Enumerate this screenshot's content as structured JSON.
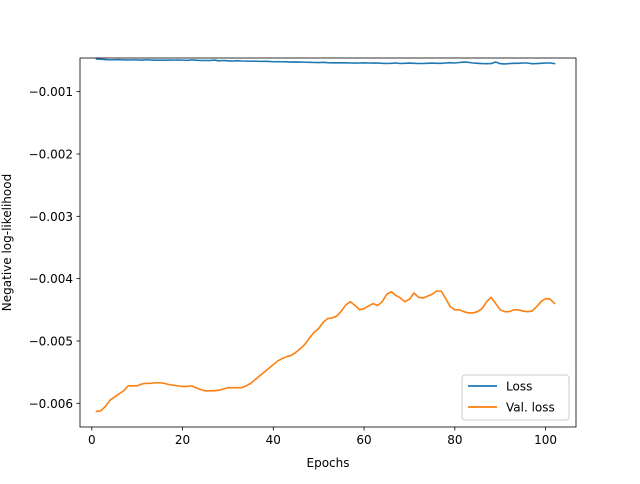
{
  "chart_data": {
    "type": "line",
    "title": "",
    "xlabel": "Epochs",
    "ylabel": "Negative log-likelihood",
    "xlim": [
      -2.6,
      106.7
    ],
    "ylim": [
      -0.00638,
      -0.00046
    ],
    "xticks": [
      0,
      20,
      40,
      60,
      80,
      100
    ],
    "xtick_labels": [
      "0",
      "20",
      "40",
      "60",
      "80",
      "100"
    ],
    "yticks": [
      -0.001,
      -0.002,
      -0.003,
      -0.004,
      -0.005,
      -0.006
    ],
    "ytick_labels": [
      "−0.001",
      "−0.002",
      "−0.003",
      "−0.004",
      "−0.005",
      "−0.006"
    ],
    "grid": false,
    "legend": "lower-right",
    "x": [
      1,
      2,
      3,
      4,
      5,
      6,
      7,
      8,
      9,
      10,
      11,
      12,
      13,
      14,
      15,
      16,
      17,
      18,
      19,
      20,
      21,
      22,
      23,
      24,
      25,
      26,
      27,
      28,
      29,
      30,
      31,
      32,
      33,
      34,
      35,
      36,
      37,
      38,
      39,
      40,
      41,
      42,
      43,
      44,
      45,
      46,
      47,
      48,
      49,
      50,
      51,
      52,
      53,
      54,
      55,
      56,
      57,
      58,
      59,
      60,
      61,
      62,
      63,
      64,
      65,
      66,
      67,
      68,
      69,
      70,
      71,
      72,
      73,
      74,
      75,
      76,
      77,
      78,
      79,
      80,
      81,
      82,
      83,
      84,
      85,
      86,
      87,
      88,
      89,
      90,
      91,
      92,
      93,
      94,
      95,
      96,
      97,
      98,
      99,
      100,
      101,
      102
    ],
    "series": [
      {
        "name": "Loss",
        "color": "#1f77b4",
        "values": [
          -0.000475,
          -0.00048,
          -0.000485,
          -0.00049,
          -0.000488,
          -0.000486,
          -0.00049,
          -0.000492,
          -0.00049,
          -0.00049,
          -0.000495,
          -0.000488,
          -0.000492,
          -0.000495,
          -0.000494,
          -0.000495,
          -0.000493,
          -0.000494,
          -0.000492,
          -0.000494,
          -0.000498,
          -0.00049,
          -0.000495,
          -0.0005,
          -0.000498,
          -0.0005,
          -0.000493,
          -0.000505,
          -0.0005,
          -0.000505,
          -0.00051,
          -0.000503,
          -0.000508,
          -0.00051,
          -0.000512,
          -0.00051,
          -0.000514,
          -0.000512,
          -0.000515,
          -0.00052,
          -0.000518,
          -0.00052,
          -0.000522,
          -0.000525,
          -0.000523,
          -0.000525,
          -0.000528,
          -0.00053,
          -0.000532,
          -0.000534,
          -0.00053,
          -0.000535,
          -0.000538,
          -0.000537,
          -0.000536,
          -0.000538,
          -0.00054,
          -0.000542,
          -0.00054,
          -0.000538,
          -0.00054,
          -0.000542,
          -0.00054,
          -0.000545,
          -0.000548,
          -0.000545,
          -0.00054,
          -0.000548,
          -0.000545,
          -0.000542,
          -0.000545,
          -0.000548,
          -0.000548,
          -0.000545,
          -0.000542,
          -0.000545,
          -0.000545,
          -0.00054,
          -0.000535,
          -0.00054,
          -0.000532,
          -0.000525,
          -0.00053,
          -0.00054,
          -0.000545,
          -0.00055,
          -0.000552,
          -0.00055,
          -0.000525,
          -0.000552,
          -0.000555,
          -0.00055,
          -0.000545,
          -0.000545,
          -0.00054,
          -0.00054,
          -0.000552,
          -0.00055,
          -0.000545,
          -0.00054,
          -0.00054,
          -0.00055
        ]
      },
      {
        "name": "Val. loss",
        "color": "#ff7f0e",
        "values": [
          -0.00613,
          -0.00612,
          -0.00605,
          -0.00595,
          -0.0059,
          -0.00585,
          -0.0058,
          -0.00572,
          -0.00572,
          -0.00572,
          -0.00569,
          -0.00568,
          -0.00568,
          -0.00567,
          -0.00567,
          -0.00568,
          -0.0057,
          -0.00571,
          -0.00572,
          -0.00573,
          -0.00573,
          -0.00572,
          -0.00575,
          -0.00578,
          -0.0058,
          -0.0058,
          -0.0058,
          -0.00579,
          -0.00577,
          -0.00575,
          -0.00575,
          -0.00575,
          -0.00575,
          -0.00572,
          -0.00568,
          -0.00562,
          -0.00556,
          -0.0055,
          -0.00544,
          -0.00538,
          -0.00532,
          -0.00528,
          -0.00525,
          -0.00523,
          -0.00518,
          -0.00512,
          -0.00505,
          -0.00495,
          -0.00486,
          -0.0048,
          -0.0047,
          -0.00464,
          -0.00463,
          -0.0046,
          -0.00452,
          -0.00442,
          -0.00437,
          -0.00443,
          -0.0045,
          -0.00448,
          -0.00444,
          -0.0044,
          -0.00443,
          -0.00437,
          -0.00425,
          -0.00421,
          -0.00427,
          -0.00431,
          -0.00437,
          -0.00433,
          -0.00423,
          -0.0043,
          -0.00431,
          -0.00428,
          -0.00425,
          -0.0042,
          -0.0042,
          -0.00432,
          -0.00445,
          -0.0045,
          -0.0045,
          -0.00453,
          -0.00455,
          -0.00455,
          -0.00453,
          -0.00448,
          -0.00437,
          -0.0043,
          -0.0044,
          -0.0045,
          -0.00453,
          -0.00453,
          -0.0045,
          -0.0045,
          -0.00452,
          -0.00453,
          -0.00452,
          -0.00445,
          -0.00437,
          -0.00432,
          -0.00433,
          -0.0044
        ]
      }
    ]
  }
}
